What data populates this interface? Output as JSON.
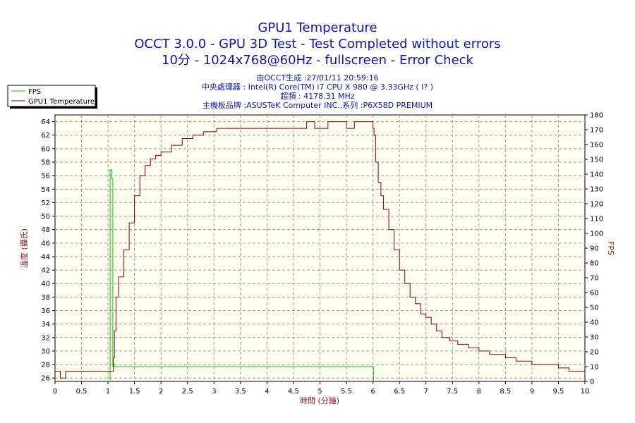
{
  "header": {
    "title": "GPU1 Temperature",
    "subtitle1": "OCCT 3.0.0 - GPU 3D Test - Test Completed without errors",
    "subtitle2": "10分 - 1024x768@60Hz - fullscreen - Error Check",
    "info1": "由OCCT生成 :27/01/11 20:59:16",
    "info2": "中央處理器 : Intel(R) Core(TM) i7 CPU X 980 @ 3.33GHz ( I? )",
    "info3": "超頻 : 4178.31 MHz",
    "info4": "主機板品牌 :ASUSTeK Computer INC.,系列 :P6X58D PREMIUM"
  },
  "colors": {
    "background": "#ffffff",
    "plot_bg": "#fffdf0",
    "grid": "#999999",
    "fps": "#00cc00",
    "temperature": "#8b0000",
    "title": "#1010c0",
    "axis_label": "#8b1a1a"
  },
  "chart_data": {
    "type": "line",
    "xlabel": "時間 (分鐘)",
    "ylabel": "溫度 (攝氏)",
    "y2label": "FPS",
    "xlim": [
      0,
      10
    ],
    "ylim": [
      25.5,
      65
    ],
    "y2lim": [
      0,
      180
    ],
    "x_ticks": [
      "0",
      "0.5",
      "1",
      "1.5",
      "2",
      "2.5",
      "3",
      "3.5",
      "4",
      "4.5",
      "5",
      "5.5",
      "6",
      "6.5",
      "7",
      "7.5",
      "8",
      "8.5",
      "9",
      "9.5",
      "10"
    ],
    "y_ticks": [
      "26",
      "28",
      "30",
      "32",
      "34",
      "36",
      "38",
      "40",
      "42",
      "44",
      "46",
      "48",
      "50",
      "52",
      "54",
      "56",
      "58",
      "60",
      "62",
      "64"
    ],
    "y2_ticks": [
      "0",
      "10",
      "20",
      "30",
      "40",
      "50",
      "60",
      "70",
      "80",
      "90",
      "100",
      "110",
      "120",
      "130",
      "140",
      "150",
      "160",
      "170",
      "180"
    ],
    "grid": true,
    "legend_position": "top-left",
    "series": [
      {
        "name": "FPS",
        "axis": "right",
        "x": [
          1.02,
          1.04,
          1.07,
          1.09,
          1.1,
          1.11,
          1.13,
          6.0,
          6.01
        ],
        "y": [
          0,
          143,
          137,
          10,
          12,
          10,
          10,
          10,
          0
        ]
      },
      {
        "name": "GPU1 Temperature",
        "axis": "left",
        "x": [
          0,
          0.05,
          0.1,
          0.15,
          0.2,
          1.05,
          1.1,
          1.12,
          1.15,
          1.2,
          1.3,
          1.4,
          1.5,
          1.6,
          1.7,
          1.8,
          1.9,
          2.0,
          2.2,
          2.4,
          2.6,
          2.8,
          3.05,
          3.5,
          4.0,
          4.6,
          4.75,
          4.9,
          5.0,
          5.15,
          5.4,
          5.5,
          5.65,
          5.9,
          6.0,
          6.02,
          6.05,
          6.1,
          6.15,
          6.2,
          6.3,
          6.4,
          6.5,
          6.6,
          6.7,
          6.8,
          6.9,
          7.0,
          7.1,
          7.2,
          7.3,
          7.45,
          7.6,
          7.8,
          8.0,
          8.2,
          8.5,
          8.7,
          9.0,
          9.3,
          9.5,
          9.7,
          10.0
        ],
        "y": [
          27,
          27,
          26,
          26,
          27,
          27,
          29,
          33,
          38,
          41,
          45,
          49,
          53,
          56,
          57.5,
          58.5,
          59,
          59.5,
          60.5,
          61.5,
          62,
          62.5,
          63,
          63,
          63,
          63,
          64,
          63,
          63,
          64,
          64,
          63,
          64,
          64,
          63,
          62,
          58,
          55,
          53,
          51,
          48,
          45,
          42,
          40,
          38,
          37,
          35.5,
          35,
          34,
          33,
          32,
          31.5,
          31,
          30.5,
          30,
          29.5,
          29,
          28.5,
          28,
          28,
          27.5,
          27,
          27
        ]
      }
    ]
  }
}
